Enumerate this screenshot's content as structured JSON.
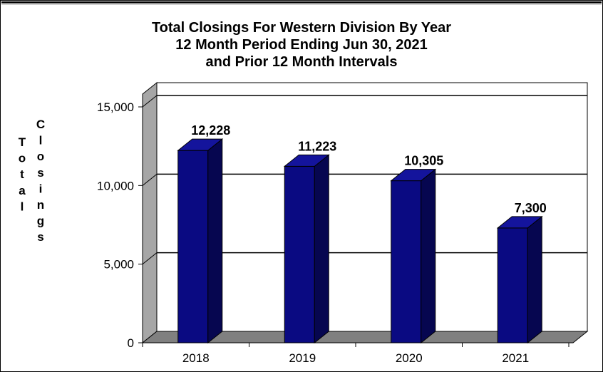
{
  "chart_data": {
    "type": "bar",
    "title_lines": [
      "Total Closings For Western Division By Year",
      "12 Month Period Ending Jun 30, 2021",
      "and Prior 12 Month Intervals"
    ],
    "categories": [
      "2018",
      "2019",
      "2020",
      "2021"
    ],
    "values": [
      12228,
      11223,
      10305,
      7300
    ],
    "data_labels": [
      "12,228",
      "11,223",
      "10,305",
      "7,300"
    ],
    "yticks": [
      0,
      5000,
      10000,
      15000
    ],
    "ytick_labels": [
      "0",
      "5,000",
      "10,000",
      "15,000"
    ],
    "ylabel_columns": [
      "Total",
      "Closings"
    ],
    "ylim": [
      0,
      15000
    ],
    "grid": true,
    "legend": "none",
    "colors": {
      "bar_front": "#0a0a82",
      "bar_side": "#060650",
      "bar_top": "#14149c",
      "wall": "#a6a6a6",
      "floor": "#808080",
      "plot_bg": "#ffffff"
    }
  }
}
